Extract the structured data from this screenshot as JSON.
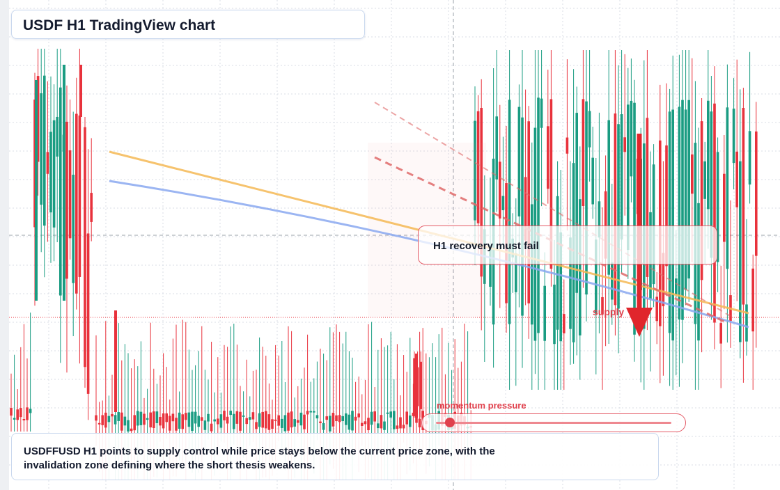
{
  "title": "USDF H1 TradingView chart",
  "callout": "H1 recovery must fail",
  "supply_label": "supply",
  "momentum": {
    "label": "momentum pressure",
    "level": 0.06
  },
  "summary": "USDFFUSD H1 points to supply control while price stays below the current price zone, with the invalidation zone defining where the short thesis weakens.",
  "colors": {
    "bull": "#1a9c82",
    "bear": "#e8323c",
    "ema_fast": "#f5b955",
    "ema_slow": "#8aa8f0",
    "trend": "#e06a6a",
    "arrow": "#e0262c",
    "grid": "#d8dde6"
  },
  "icons": {
    "direction": "arrow-down-icon"
  }
}
